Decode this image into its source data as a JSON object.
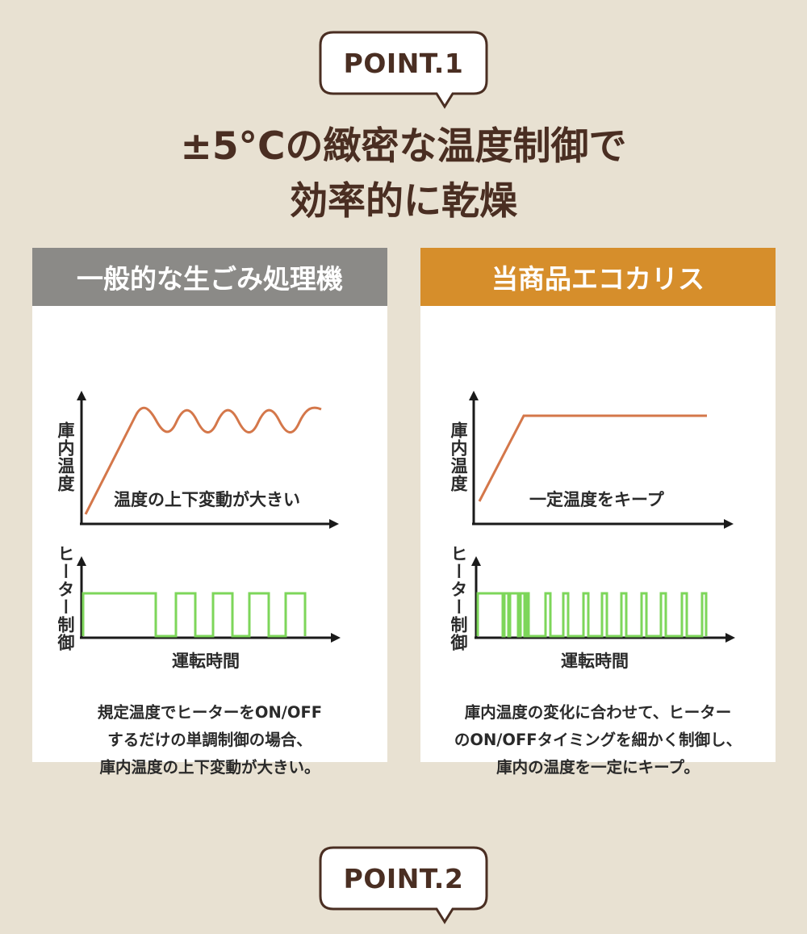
{
  "point1": {
    "label": "POINT.1"
  },
  "title": {
    "line1": "±5°Cの緻密な温度制御で",
    "line2": "効率的に乾燥"
  },
  "left": {
    "header": "一般的な生ごみ処理機",
    "header_color": "#8b8a87",
    "temp_axis": "庫内温度",
    "temp_annotation": "温度の上下変動が大きい",
    "heater_axis": "ヒーター制御",
    "time_axis": "運転時間",
    "desc": [
      "規定温度でヒーターをON/OFF",
      "するだけの単調制御の場合、",
      "庫内温度の上下変動が大きい。"
    ]
  },
  "right": {
    "header": "当商品エコカリス",
    "header_color": "#d68e2b",
    "temp_axis": "庫内温度",
    "temp_annotation": "一定温度をキープ",
    "heater_axis": "ヒーター制御",
    "time_axis": "運転時間",
    "desc": [
      "庫内温度の変化に合わせて、ヒーター",
      "のON/OFFタイミングを細かく制御し、",
      "庫内の温度を一定にキープ。"
    ]
  },
  "colors": {
    "temp_line": "#d4774a",
    "heater_line": "#7dd65a",
    "axis": "#1a1a1a"
  },
  "point2": {
    "label": "POINT.2"
  }
}
